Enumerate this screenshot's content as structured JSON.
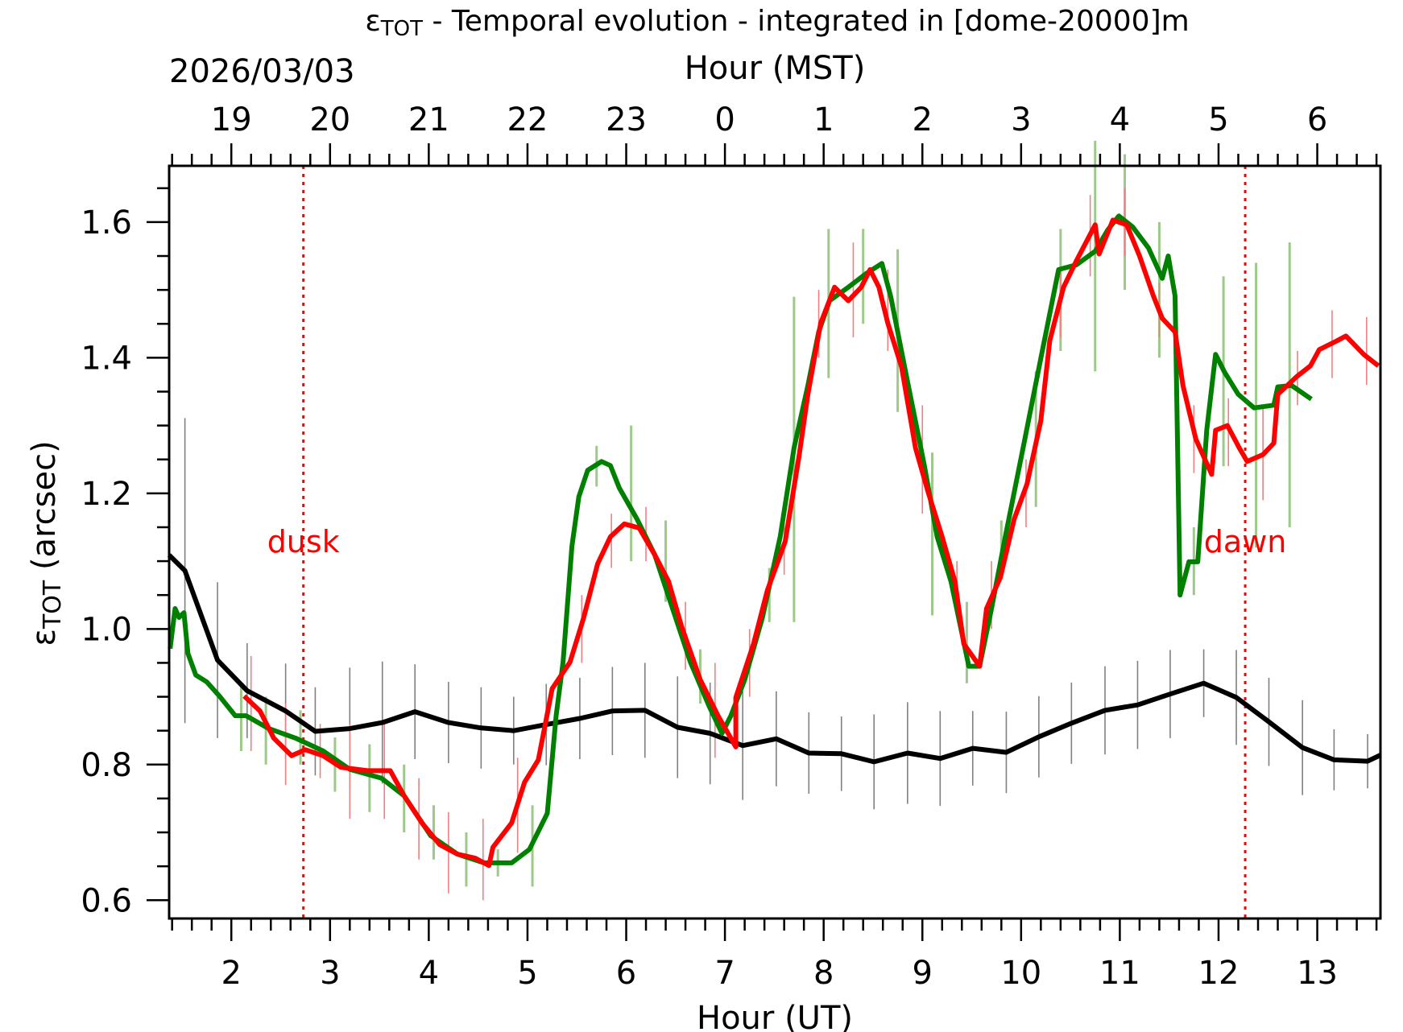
{
  "chart_data": {
    "type": "line",
    "title_symbol": "ε",
    "title_sub": "TOT",
    "title_rest": " - Temporal evolution - integrated in [dome-20000]m",
    "date": "2026/03/03",
    "xlabel": "Hour (UT)",
    "x2label": "Hour (MST)",
    "ylabel_symbol": "ε",
    "ylabel_sub": "TOT",
    "ylabel_rest": " (arcsec)",
    "xlim": [
      1.37,
      13.64
    ],
    "ylim": [
      0.573,
      1.683
    ],
    "x_ticks": [
      2,
      3,
      4,
      5,
      6,
      7,
      8,
      9,
      10,
      11,
      12,
      13
    ],
    "x_tick_labels": [
      "2",
      "3",
      "4",
      "5",
      "6",
      "7",
      "8",
      "9",
      "10",
      "11",
      "12",
      "13"
    ],
    "x2_tick_labels": [
      "19",
      "20",
      "21",
      "22",
      "23",
      "0",
      "1",
      "2",
      "3",
      "4",
      "5",
      "6"
    ],
    "y_ticks": [
      0.6,
      0.8,
      1.0,
      1.2,
      1.4,
      1.6
    ],
    "y_tick_labels": [
      "0.6",
      "0.8",
      "1.0",
      "1.2",
      "1.4",
      "1.6"
    ],
    "grid": false,
    "annotations": [
      {
        "text": "dusk",
        "x": 2.73,
        "color": "#ff0000"
      },
      {
        "text": "dawn",
        "x": 12.27,
        "color": "#ff0000"
      }
    ],
    "series": [
      {
        "color": "#000000",
        "errcolor": "#808080",
        "x": [
          1.37,
          1.53,
          1.86,
          2.16,
          2.55,
          2.85,
          3.2,
          3.53,
          3.86,
          4.2,
          4.53,
          4.86,
          5.19,
          5.53,
          5.86,
          6.19,
          6.52,
          6.85,
          7.18,
          7.52,
          7.85,
          8.18,
          8.51,
          8.85,
          9.18,
          9.51,
          9.85,
          10.18,
          10.51,
          10.85,
          11.18,
          11.51,
          11.85,
          12.18,
          12.51,
          12.85,
          13.17,
          13.51,
          13.64
        ],
        "y": [
          1.109,
          1.086,
          0.954,
          0.909,
          0.879,
          0.849,
          0.853,
          0.862,
          0.878,
          0.862,
          0.854,
          0.85,
          0.859,
          0.868,
          0.879,
          0.88,
          0.855,
          0.846,
          0.828,
          0.838,
          0.817,
          0.816,
          0.804,
          0.817,
          0.809,
          0.824,
          0.818,
          0.841,
          0.861,
          0.88,
          0.888,
          0.904,
          0.92,
          0.899,
          0.863,
          0.825,
          0.807,
          0.805,
          0.814
        ],
        "err": [
          0,
          0.225,
          0.115,
          0.07,
          0.07,
          0.065,
          0.09,
          0.09,
          0.07,
          0.06,
          0.06,
          0.05,
          0.06,
          0.06,
          0.065,
          0.07,
          0.075,
          0.075,
          0.08,
          0.07,
          0.06,
          0.055,
          0.07,
          0.075,
          0.07,
          0.055,
          0.06,
          0.06,
          0.06,
          0.065,
          0.065,
          0.065,
          0.05,
          0.07,
          0.065,
          0.07,
          0.045,
          0.04,
          0
        ]
      },
      {
        "color": "#008000",
        "errcolor": "#9dc98a",
        "x": [
          1.38,
          1.43,
          1.47,
          1.52,
          1.56,
          1.64,
          1.75,
          1.88,
          2.04,
          2.15,
          2.38,
          2.65,
          2.93,
          3.2,
          3.52,
          3.75,
          4.02,
          4.29,
          4.56,
          4.84,
          5.02,
          5.2,
          5.29,
          5.36,
          5.45,
          5.52,
          5.61,
          5.75,
          5.84,
          5.93,
          6.11,
          6.29,
          6.47,
          6.65,
          6.84,
          6.97,
          7.06,
          7.2,
          7.38,
          7.56,
          7.7,
          7.84,
          7.95,
          8.06,
          8.25,
          8.43,
          8.59,
          8.68,
          8.84,
          9.02,
          9.15,
          9.29,
          9.47,
          9.58,
          9.7,
          9.84,
          10.02,
          10.2,
          10.38,
          10.56,
          10.75,
          10.88,
          10.99,
          11.13,
          11.29,
          11.43,
          11.49,
          11.56,
          11.61,
          11.7,
          11.79,
          11.88,
          11.97,
          12.06,
          12.2,
          12.36,
          12.56,
          12.6,
          12.74,
          12.94
        ],
        "y": [
          0.971,
          1.03,
          1.017,
          1.024,
          0.964,
          0.932,
          0.922,
          0.901,
          0.872,
          0.872,
          0.853,
          0.839,
          0.82,
          0.793,
          0.78,
          0.754,
          0.695,
          0.668,
          0.655,
          0.655,
          0.675,
          0.728,
          0.872,
          0.951,
          1.122,
          1.195,
          1.234,
          1.247,
          1.241,
          1.208,
          1.162,
          1.109,
          1.03,
          0.951,
          0.886,
          0.846,
          0.872,
          0.925,
          1.017,
          1.136,
          1.267,
          1.359,
          1.438,
          1.484,
          1.504,
          1.524,
          1.539,
          1.49,
          1.372,
          1.241,
          1.136,
          1.07,
          0.945,
          0.945,
          1.03,
          1.136,
          1.267,
          1.399,
          1.53,
          1.537,
          1.557,
          1.589,
          1.609,
          1.593,
          1.562,
          1.517,
          1.55,
          1.491,
          1.05,
          1.099,
          1.099,
          1.293,
          1.405,
          1.379,
          1.346,
          1.326,
          1.33,
          1.357,
          1.359,
          1.339
        ],
        "errbars": [
          [
            2.1,
            0.87,
            0.05
          ],
          [
            2.35,
            0.85,
            0.05
          ],
          [
            2.7,
            0.84,
            0.04
          ],
          [
            3.05,
            0.8,
            0.04
          ],
          [
            3.4,
            0.78,
            0.05
          ],
          [
            3.75,
            0.75,
            0.05
          ],
          [
            4.05,
            0.7,
            0.04
          ],
          [
            4.38,
            0.66,
            0.04
          ],
          [
            4.7,
            0.655,
            0.02
          ],
          [
            5.05,
            0.68,
            0.06
          ],
          [
            5.7,
            1.24,
            0.03
          ],
          [
            6.05,
            1.2,
            0.1
          ],
          [
            6.4,
            1.1,
            0.06
          ],
          [
            6.75,
            0.93,
            0.04
          ],
          [
            7.45,
            1.05,
            0.04
          ],
          [
            7.7,
            1.25,
            0.24
          ],
          [
            8.05,
            1.48,
            0.11
          ],
          [
            8.4,
            1.52,
            0.07
          ],
          [
            8.75,
            1.44,
            0.12
          ],
          [
            9.1,
            1.14,
            0.12
          ],
          [
            9.45,
            0.98,
            0.06
          ],
          [
            9.8,
            1.12,
            0.04
          ],
          [
            10.15,
            1.28,
            0.1
          ],
          [
            10.4,
            1.5,
            0.09
          ],
          [
            10.75,
            1.55,
            0.17
          ],
          [
            11.05,
            1.6,
            0.1
          ],
          [
            11.4,
            1.5,
            0.1
          ],
          [
            11.75,
            1.1,
            0.05
          ],
          [
            12.05,
            1.38,
            0.14
          ],
          [
            12.38,
            1.33,
            0.21
          ],
          [
            12.72,
            1.36,
            0.21
          ]
        ]
      },
      {
        "color": "#ff0000",
        "errcolor": "#f08080",
        "x": [
          2.13,
          2.29,
          2.43,
          2.61,
          2.75,
          2.93,
          3.11,
          3.38,
          3.61,
          3.75,
          3.93,
          4.11,
          4.29,
          4.47,
          4.61,
          4.65,
          4.84,
          4.97,
          5.11,
          5.25,
          5.43,
          5.57,
          5.71,
          5.84,
          5.98,
          6.13,
          6.29,
          6.43,
          6.56,
          6.75,
          6.93,
          7.11,
          7.11,
          7.29,
          7.43,
          7.61,
          7.75,
          7.84,
          7.97,
          8.11,
          8.25,
          8.38,
          8.47,
          8.56,
          8.65,
          8.79,
          8.93,
          9.06,
          9.2,
          9.33,
          9.42,
          9.58,
          9.65,
          9.79,
          9.93,
          10.06,
          10.2,
          10.29,
          10.43,
          10.56,
          10.75,
          10.79,
          10.93,
          11.07,
          11.2,
          11.34,
          11.43,
          11.56,
          11.64,
          11.77,
          11.93,
          11.97,
          12.09,
          12.21,
          12.29,
          12.45,
          12.56,
          12.6,
          12.79,
          12.93,
          13.02,
          13.2,
          13.29,
          13.47,
          13.62
        ],
        "y": [
          0.901,
          0.879,
          0.839,
          0.813,
          0.822,
          0.813,
          0.796,
          0.791,
          0.791,
          0.754,
          0.714,
          0.682,
          0.668,
          0.662,
          0.651,
          0.678,
          0.714,
          0.774,
          0.807,
          0.912,
          0.951,
          1.017,
          1.096,
          1.136,
          1.155,
          1.149,
          1.109,
          1.07,
          1.004,
          0.925,
          0.872,
          0.826,
          0.899,
          0.978,
          1.057,
          1.129,
          1.254,
          1.346,
          1.451,
          1.504,
          1.484,
          1.504,
          1.53,
          1.504,
          1.451,
          1.386,
          1.267,
          1.201,
          1.136,
          1.07,
          0.978,
          0.945,
          1.03,
          1.076,
          1.162,
          1.214,
          1.307,
          1.425,
          1.504,
          1.543,
          1.596,
          1.553,
          1.603,
          1.596,
          1.55,
          1.491,
          1.458,
          1.438,
          1.359,
          1.28,
          1.228,
          1.293,
          1.3,
          1.267,
          1.247,
          1.257,
          1.274,
          1.346,
          1.372,
          1.388,
          1.412,
          1.425,
          1.432,
          1.405,
          1.388
        ],
        "errbars": [
          [
            2.2,
            0.89,
            0.07
          ],
          [
            2.55,
            0.83,
            0.06
          ],
          [
            2.9,
            0.82,
            0.04
          ],
          [
            3.2,
            0.79,
            0.07
          ],
          [
            3.55,
            0.79,
            0.07
          ],
          [
            3.9,
            0.72,
            0.06
          ],
          [
            4.2,
            0.67,
            0.06
          ],
          [
            4.55,
            0.66,
            0.06
          ],
          [
            4.9,
            0.74,
            0.07
          ],
          [
            5.55,
            1.0,
            0.05
          ],
          [
            5.85,
            1.13,
            0.04
          ],
          [
            6.2,
            1.14,
            0.04
          ],
          [
            6.6,
            0.99,
            0.05
          ],
          [
            6.9,
            0.88,
            0.07
          ],
          [
            7.25,
            0.95,
            0.05
          ],
          [
            7.6,
            1.12,
            0.04
          ],
          [
            7.95,
            1.45,
            0.05
          ],
          [
            8.3,
            1.5,
            0.07
          ],
          [
            8.65,
            1.47,
            0.06
          ],
          [
            9.0,
            1.25,
            0.08
          ],
          [
            9.35,
            1.06,
            0.04
          ],
          [
            9.7,
            1.05,
            0.05
          ],
          [
            10.05,
            1.2,
            0.05
          ],
          [
            10.4,
            1.48,
            0.05
          ],
          [
            10.7,
            1.58,
            0.06
          ],
          [
            11.05,
            1.6,
            0.05
          ],
          [
            11.4,
            1.47,
            0.04
          ],
          [
            11.75,
            1.28,
            0.05
          ],
          [
            12.1,
            1.29,
            0.05
          ],
          [
            12.45,
            1.26,
            0.07
          ],
          [
            12.8,
            1.37,
            0.04
          ],
          [
            13.15,
            1.42,
            0.05
          ],
          [
            13.5,
            1.41,
            0.05
          ]
        ]
      }
    ]
  }
}
